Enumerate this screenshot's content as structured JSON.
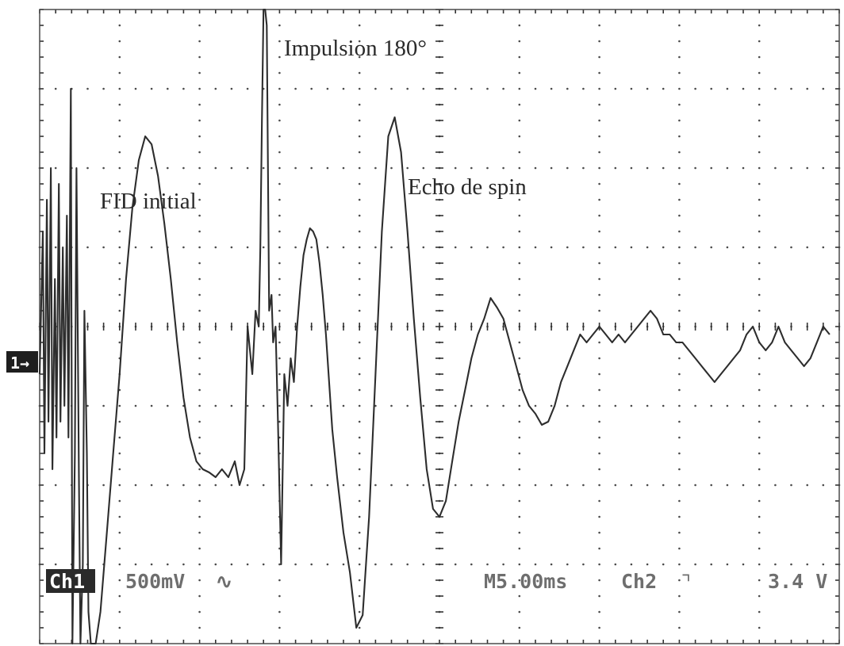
{
  "chart_data": {
    "type": "line",
    "title": "",
    "xlabel": "",
    "ylabel": "",
    "grid": true,
    "divisions": {
      "x": 10,
      "y": 8
    },
    "xlim": [
      0,
      50
    ],
    "ylim": [
      -2,
      2
    ],
    "x_unit": "ms",
    "y_unit": "V",
    "annotations": [
      {
        "text": "Impulsion 180°",
        "x": 15.5,
        "y": 1.78
      },
      {
        "text": "FID initial",
        "x": 7.5,
        "y": 0.82
      },
      {
        "text": "Echo de spin",
        "x": 23.5,
        "y": 0.95
      }
    ],
    "channel_marker": "1→",
    "readouts": {
      "channel": "Ch1",
      "volts_per_div": "500mV",
      "coupling_symbol": "∿",
      "time_per_div": "M5.00ms",
      "trigger_source": "Ch2",
      "trigger_slope_symbol": "⌝",
      "trigger_level": "3.4 V"
    },
    "series": [
      {
        "values_x": [
          0.0,
          0.2,
          0.3,
          0.45,
          0.55,
          0.7,
          0.8,
          0.95,
          1.05,
          1.2,
          1.3,
          1.45,
          1.55,
          1.7,
          1.8,
          1.95,
          2.05,
          2.2,
          2.3,
          2.45,
          2.55,
          2.7,
          2.8,
          2.95,
          3.05,
          3.2,
          3.5,
          3.8,
          4.2,
          4.6,
          5.0,
          5.4,
          5.8,
          6.2,
          6.6,
          7.0,
          7.4,
          7.8,
          8.2,
          8.6,
          9.0,
          9.4,
          9.8,
          10.2,
          10.6,
          11.0,
          11.4,
          11.8,
          12.2,
          12.5,
          12.8,
          13.0,
          13.3,
          13.5,
          13.7,
          13.8,
          13.9,
          14.0,
          14.1,
          14.2,
          14.35,
          14.5,
          14.6,
          14.75,
          14.9,
          15.1,
          15.3,
          15.5,
          15.7,
          15.9,
          16.1,
          16.3,
          16.5,
          16.7,
          16.9,
          17.1,
          17.3,
          17.5,
          17.7,
          17.9,
          18.1,
          18.3,
          18.6,
          19.0,
          19.4,
          19.8,
          20.2,
          20.6,
          21.0,
          21.4,
          21.8,
          22.2,
          22.6,
          23.0,
          23.4,
          23.8,
          24.2,
          24.6,
          25.0,
          25.4,
          25.8,
          26.2,
          26.6,
          27.0,
          27.4,
          27.8,
          28.2,
          28.6,
          29.0,
          29.4,
          29.8,
          30.2,
          30.6,
          31.0,
          31.4,
          31.8,
          32.2,
          32.6,
          33.0,
          33.4,
          33.8,
          34.2,
          34.6,
          35.0,
          35.4,
          35.8,
          36.2,
          36.6,
          37.0,
          37.4,
          37.8,
          38.2,
          38.6,
          39.0,
          39.4,
          39.8,
          40.2,
          40.6,
          41.0,
          41.4,
          41.8,
          42.2,
          42.6,
          43.0,
          43.4,
          43.8,
          44.2,
          44.6,
          45.0,
          45.4,
          45.8,
          46.2,
          46.6,
          47.0,
          47.4,
          47.8,
          48.2,
          48.6,
          49.0,
          49.4
        ],
        "values_y": [
          -0.3,
          0.6,
          -0.8,
          0.8,
          -0.6,
          1.0,
          -0.9,
          0.3,
          -0.7,
          0.9,
          -0.6,
          0.5,
          -0.5,
          0.7,
          -0.7,
          1.5,
          -2.0,
          -0.8,
          1.0,
          -0.9,
          -2.4,
          -1.5,
          0.1,
          -0.8,
          -1.8,
          -2.2,
          -2.1,
          -1.8,
          -1.3,
          -0.8,
          -0.3,
          0.3,
          0.75,
          1.05,
          1.2,
          1.15,
          0.95,
          0.65,
          0.3,
          -0.1,
          -0.45,
          -0.7,
          -0.85,
          -0.9,
          -0.92,
          -0.95,
          -0.9,
          -0.95,
          -0.85,
          -1.0,
          -0.9,
          0.0,
          -0.3,
          0.1,
          0.0,
          0.5,
          1.3,
          2.9,
          3.6,
          1.9,
          0.1,
          0.2,
          -0.1,
          0.0,
          -0.6,
          -1.5,
          -0.3,
          -0.5,
          -0.2,
          -0.35,
          0.0,
          0.25,
          0.45,
          0.55,
          0.62,
          0.6,
          0.55,
          0.4,
          0.2,
          -0.05,
          -0.35,
          -0.65,
          -0.95,
          -1.3,
          -1.55,
          -1.9,
          -1.82,
          -1.2,
          -0.3,
          0.6,
          1.2,
          1.32,
          1.1,
          0.6,
          0.05,
          -0.45,
          -0.9,
          -1.15,
          -1.2,
          -1.1,
          -0.85,
          -0.6,
          -0.4,
          -0.2,
          -0.05,
          0.05,
          0.18,
          0.12,
          0.05,
          -0.1,
          -0.25,
          -0.4,
          -0.5,
          -0.55,
          -0.62,
          -0.6,
          -0.5,
          -0.35,
          -0.25,
          -0.15,
          -0.05,
          -0.1,
          -0.05,
          0.0,
          -0.05,
          -0.1,
          -0.05,
          -0.1,
          -0.05,
          0.0,
          0.05,
          0.1,
          0.05,
          -0.05,
          -0.05,
          -0.1,
          -0.1,
          -0.15,
          -0.2,
          -0.25,
          -0.3,
          -0.35,
          -0.3,
          -0.25,
          -0.2,
          -0.15,
          -0.05,
          0.0,
          -0.1,
          -0.15,
          -0.1,
          0.0,
          -0.1,
          -0.15,
          -0.2,
          -0.25,
          -0.2,
          -0.1,
          0.0,
          -0.05
        ]
      }
    ]
  }
}
